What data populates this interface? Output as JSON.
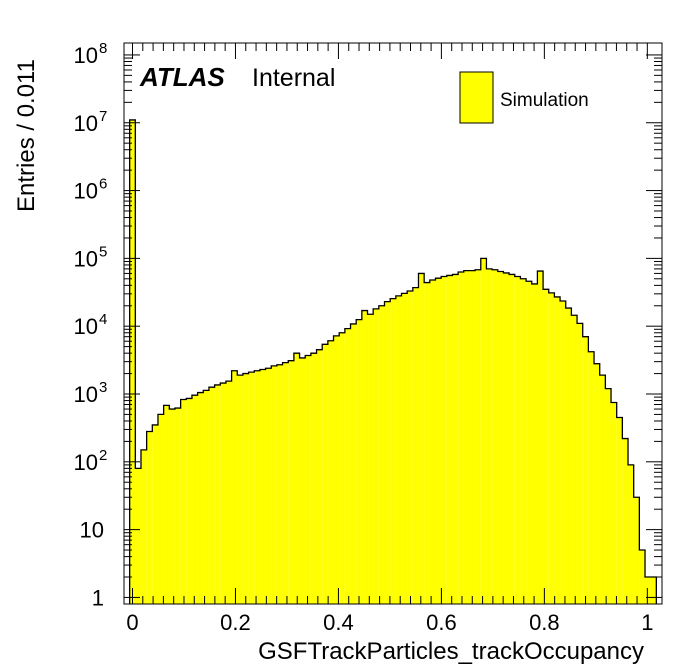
{
  "chart_data": {
    "type": "bar",
    "histogram_style": "step-filled",
    "title": "",
    "xlabel": "GSFTrackParticles_trackOccupancy",
    "ylabel": "Entries / 0.011",
    "xlim": [
      -0.0165,
      1.0285
    ],
    "ylim": [
      0.8,
      150000000
    ],
    "yscale": "log",
    "bin_width": 0.011,
    "bin_start": -0.0055,
    "fill_color": "#ffff00",
    "line_color": "#000000",
    "x_tick_labels": [
      "0",
      "0.2",
      "0.4",
      "0.6",
      "0.8",
      "1"
    ],
    "y_tick_labels": [
      {
        "value": 1,
        "base": "1",
        "exp": ""
      },
      {
        "value": 10,
        "base": "10",
        "exp": ""
      },
      {
        "value": 100,
        "base": "10",
        "exp": "2"
      },
      {
        "value": 1000,
        "base": "10",
        "exp": "3"
      },
      {
        "value": 10000,
        "base": "10",
        "exp": "4"
      },
      {
        "value": 100000,
        "base": "10",
        "exp": "5"
      },
      {
        "value": 1000000,
        "base": "10",
        "exp": "6"
      },
      {
        "value": 10000000,
        "base": "10",
        "exp": "7"
      },
      {
        "value": 100000000,
        "base": "10",
        "exp": "8"
      }
    ],
    "label_atlas": "ATLAS",
    "label_status": "Internal",
    "legend": {
      "position": "top-right",
      "entries": [
        "Simulation"
      ]
    },
    "values": [
      11000000,
      80,
      150,
      280,
      350,
      500,
      680,
      600,
      620,
      830,
      860,
      960,
      1050,
      1130,
      1260,
      1360,
      1450,
      1550,
      2200,
      1900,
      2000,
      2100,
      2200,
      2300,
      2400,
      2600,
      2700,
      2900,
      3100,
      4000,
      3400,
      3700,
      4000,
      4500,
      5400,
      6100,
      7200,
      8000,
      9200,
      10800,
      12500,
      17000,
      15000,
      18000,
      20000,
      23000,
      25500,
      28000,
      30500,
      33000,
      37000,
      60000,
      44000,
      48000,
      51000,
      54000,
      56000,
      58000,
      63000,
      66000,
      66000,
      68000,
      100000,
      70000,
      68000,
      64000,
      61000,
      58000,
      54000,
      50000,
      46000,
      42000,
      65000,
      35000,
      31000,
      27000,
      23500,
      18500,
      14500,
      11000,
      7000,
      4200,
      2800,
      1900,
      1200,
      750,
      450,
      220,
      90,
      30,
      5,
      2,
      2
    ]
  }
}
